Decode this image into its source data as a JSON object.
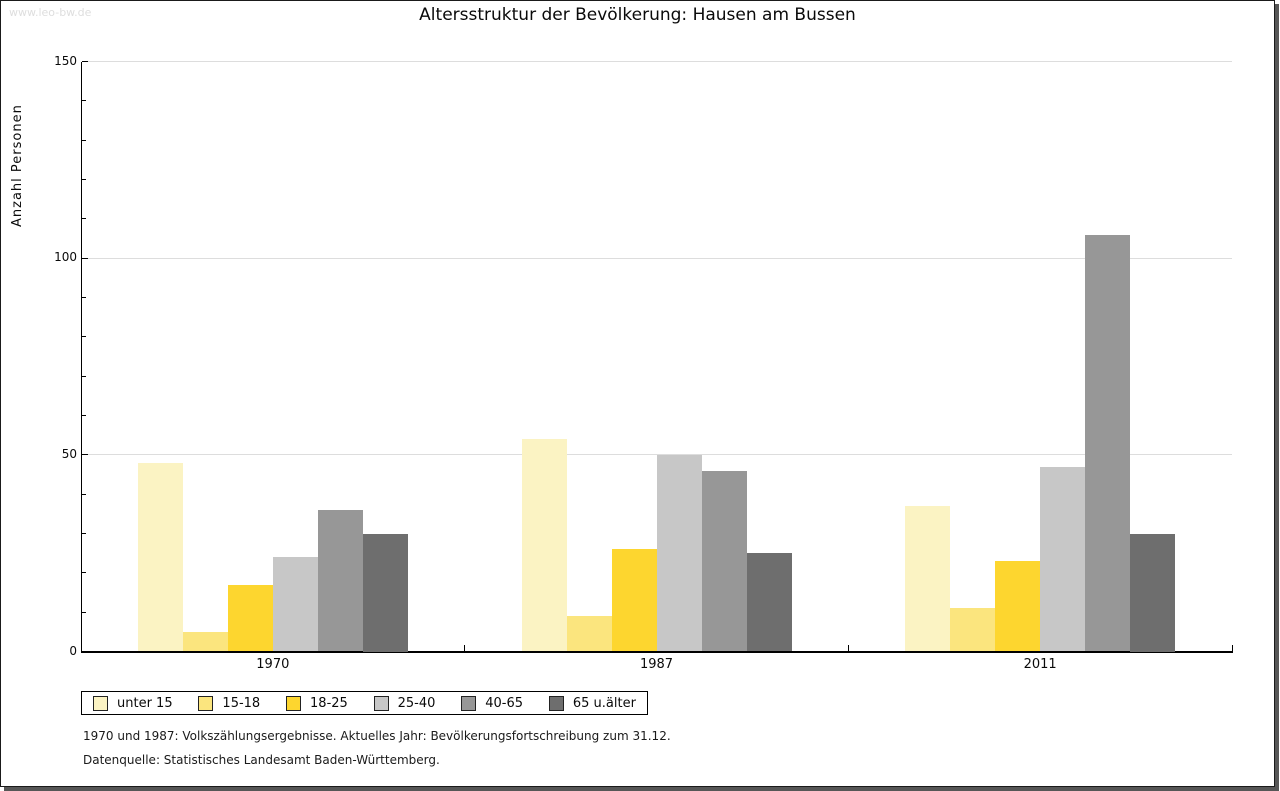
{
  "watermark": "www.leo-bw.de",
  "frame": {
    "border_color": "#1a1a1a",
    "shadow_color": "#565656",
    "background": "#ffffff"
  },
  "chart_data": {
    "type": "bar",
    "title": "Altersstruktur der Bevölkerung: Hausen am Bussen",
    "xlabel": "",
    "ylabel": "Anzahl Personen",
    "ylim": [
      0,
      150
    ],
    "yticks_major": [
      0,
      50,
      100,
      150
    ],
    "ytick_minor_step": 10,
    "grid": "horizontal",
    "gridline_values": [
      50,
      100,
      150
    ],
    "gridline_color": "#dddddd",
    "legend_position": "bottom-left",
    "categories": [
      "1970",
      "1987",
      "2011"
    ],
    "series": [
      {
        "name": "unter 15",
        "color": "#FBF3C3",
        "values": [
          48,
          54,
          37
        ]
      },
      {
        "name": "15-18",
        "color": "#FBE57E",
        "values": [
          5,
          9,
          11
        ]
      },
      {
        "name": "18-25",
        "color": "#FDD62F",
        "values": [
          17,
          26,
          23
        ]
      },
      {
        "name": "25-40",
        "color": "#C7C7C7",
        "values": [
          24,
          50,
          47
        ]
      },
      {
        "name": "40-65",
        "color": "#979797",
        "values": [
          36,
          46,
          106
        ]
      },
      {
        "name": "65 u.älter",
        "color": "#6E6E6E",
        "values": [
          30,
          25,
          30
        ]
      }
    ]
  },
  "footnotes": {
    "line1": "1970 und 1987: Volkszählungsergebnisse. Aktuelles Jahr: Bevölkerungsfortschreibung zum 31.12.",
    "line2": "Datenquelle: Statistisches Landesamt Baden-Württemberg."
  }
}
